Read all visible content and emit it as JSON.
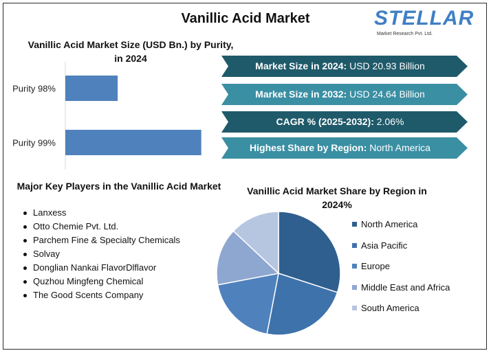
{
  "title": "Vanillic Acid Market",
  "logo": {
    "brand": "STELLAR",
    "tagline": "Market Research Pvt. Ltd."
  },
  "bar_chart_title": "Vanillic Acid Market Size (USD Bn.) by Purity, in 2024",
  "stats": [
    {
      "label": "Market Size in 2024:",
      "value": "USD 20.93 Billion",
      "color": "#1f5a6a"
    },
    {
      "label": "Market Size in 2032:",
      "value": "USD 24.64 Billion",
      "color": "#3a8fa3"
    },
    {
      "label": "CAGR % (2025-2032):",
      "value": "2.06%",
      "color": "#1f5a6a"
    },
    {
      "label": "Highest Share by Region:",
      "value": "North America",
      "color": "#3a8fa3"
    }
  ],
  "players_title": "Major Key Players in the Vanillic Acid Market",
  "players": [
    "Lanxess",
    "Otto Chemie Pvt. Ltd.",
    "Parchem Fine & Specialty Chemicals",
    "Solvay",
    "Donglian Nankai FlavorDlflavor",
    "Quzhou Mingfeng Chemical",
    "The Good Scents Company"
  ],
  "pie_chart_title": "Vanillic Acid Market Share by Region in 2024%",
  "chart_data": [
    {
      "type": "bar",
      "orientation": "horizontal",
      "title": "Vanillic Acid Market Size (USD Bn.) by Purity, in 2024",
      "categories": [
        "Purity 98%",
        "Purity 99%"
      ],
      "values": [
        5.2,
        13.5
      ],
      "xlim": [
        0,
        14
      ],
      "color": "#4f81bd",
      "grid": false
    },
    {
      "type": "pie",
      "title": "Vanillic Acid Market Share by Region in 2024%",
      "categories": [
        "North America",
        "Asia Pacific",
        "Europe",
        "Middle East and Africa",
        "South America"
      ],
      "values": [
        30,
        23,
        19,
        15,
        13
      ],
      "colors": [
        "#2f5f8f",
        "#3e72ab",
        "#4f81bd",
        "#8ea7d0",
        "#b7c6e0"
      ],
      "legend": "right"
    }
  ]
}
